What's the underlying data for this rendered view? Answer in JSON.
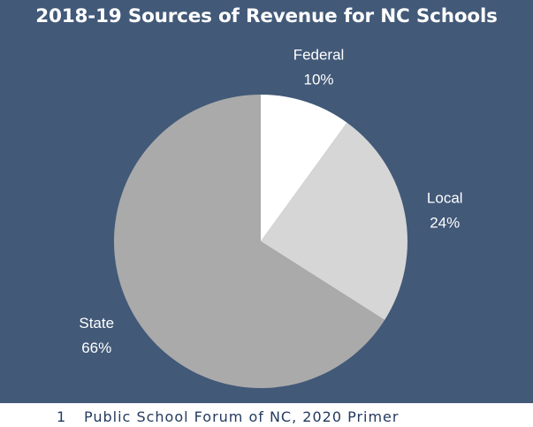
{
  "title": "2018-19 Sources of Revenue for NC Schools",
  "chart_data": {
    "type": "pie",
    "title": "2018-19 Sources of Revenue for NC Schools",
    "slices": [
      {
        "label": "Federal",
        "value": 10,
        "value_label": "10%",
        "color": "#ffffff"
      },
      {
        "label": "Local",
        "value": 24,
        "value_label": "24%",
        "color": "#d6d6d6"
      },
      {
        "label": "State",
        "value": 66,
        "value_label": "66%",
        "color": "#aaaaaa"
      }
    ],
    "start": "12 o'clock",
    "direction": "clockwise",
    "label_color": "#ffffff"
  },
  "footer": {
    "number": "1",
    "source": "Public School Forum of NC, 2020 Primer"
  },
  "colors": {
    "background": "#425978",
    "footer_text": "#243a5e"
  }
}
